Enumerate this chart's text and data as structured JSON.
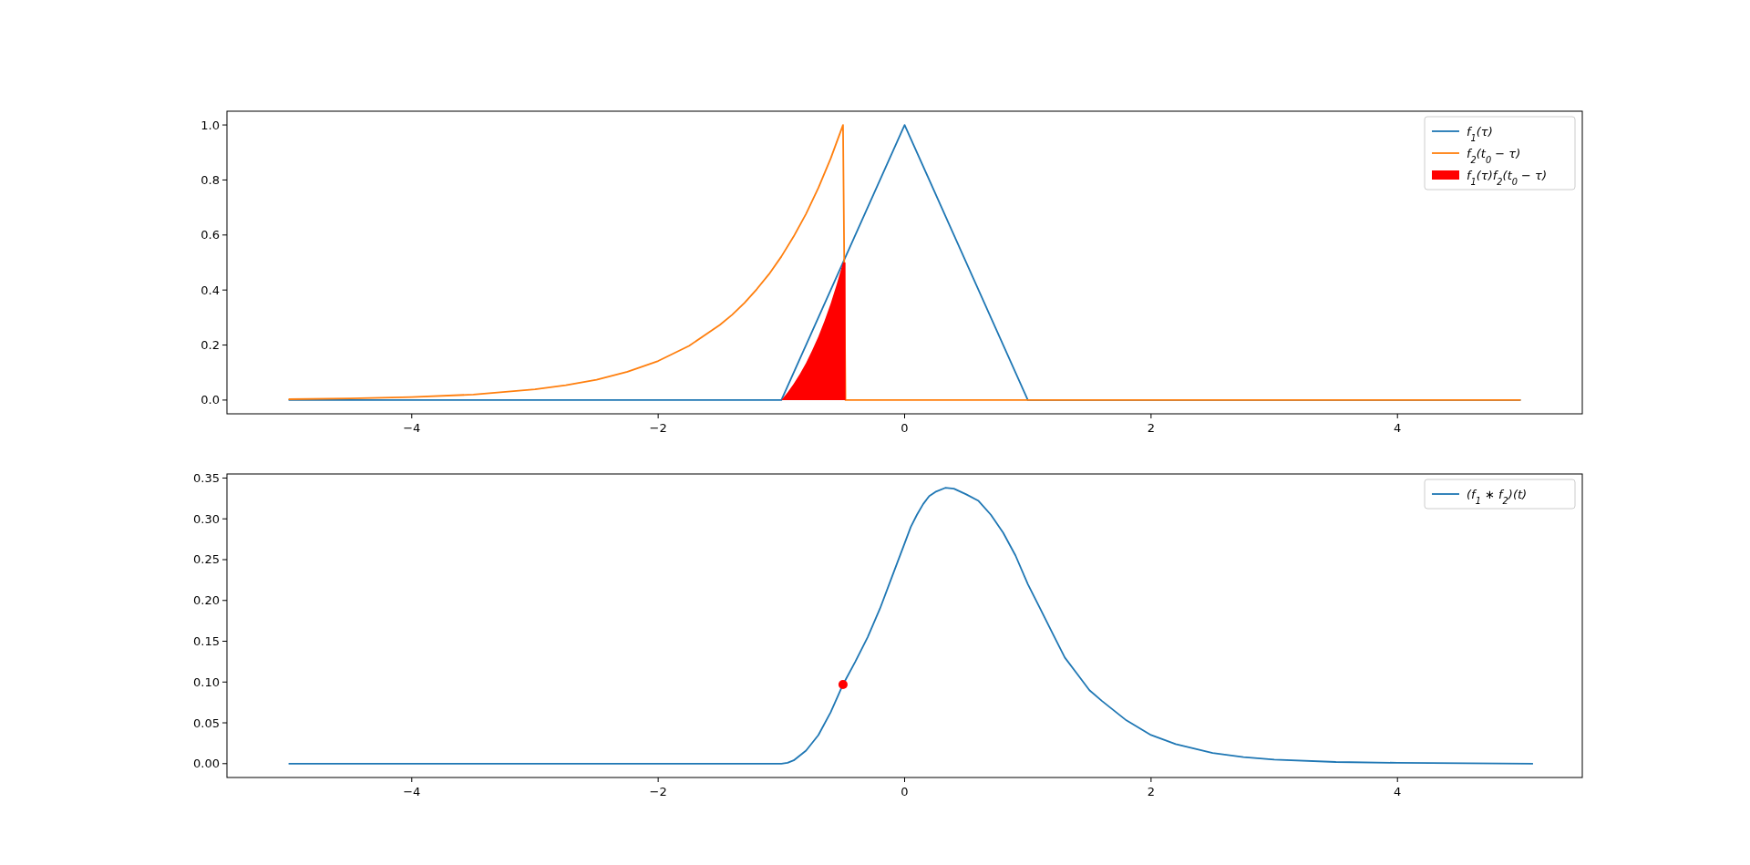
{
  "chart_data": [
    {
      "type": "line",
      "xlim": [
        -5.5,
        5.5
      ],
      "ylim": [
        -0.05,
        1.05
      ],
      "xticks": [
        -4,
        -2,
        0,
        2,
        4
      ],
      "yticks": [
        {
          "value": 0,
          "label": "0.0"
        },
        0.2,
        0.4,
        0.6,
        0.8,
        {
          "value": 1,
          "label": "1.0"
        }
      ],
      "legend": "top right",
      "grid": false,
      "series": [
        {
          "name": "f$_{1}$(τ)",
          "color": "#1f77b4",
          "x": [
            -5,
            -1,
            0,
            1,
            5
          ],
          "values": [
            0,
            0,
            1,
            0,
            0
          ]
        },
        {
          "name": "f$_{2}$(t$_{0}$ − τ)",
          "color": "#ff7f0e",
          "x": [
            -5,
            -4.5,
            -4,
            -3.5,
            -3,
            -2.75,
            -2.5,
            -2.25,
            -2,
            -1.75,
            -1.5,
            -1.4,
            -1.3,
            -1.2,
            -1.1,
            -1,
            -0.9,
            -0.8,
            -0.7,
            -0.6,
            -0.5,
            -0.48,
            5
          ],
          "values": [
            0.003,
            0.006,
            0.011,
            0.02,
            0.039,
            0.054,
            0.074,
            0.103,
            0.142,
            0.197,
            0.273,
            0.31,
            0.353,
            0.403,
            0.458,
            0.522,
            0.595,
            0.677,
            0.771,
            0.878,
            1,
            0,
            0
          ]
        },
        {
          "name": "f$_{1}$(τ)f$_{2}$(t$_{0}$ − τ)",
          "type": "area",
          "color": "#ff0000",
          "x": [
            -1,
            -0.95,
            -0.9,
            -0.85,
            -0.8,
            -0.75,
            -0.7,
            -0.65,
            -0.6,
            -0.55,
            -0.5,
            -0.48
          ],
          "values": [
            0,
            0.028,
            0.059,
            0.095,
            0.135,
            0.181,
            0.231,
            0.288,
            0.351,
            0.422,
            0.5,
            0.5
          ]
        }
      ]
    },
    {
      "type": "line",
      "xlim": [
        -5.5,
        5.5
      ],
      "ylim": [
        -0.017,
        0.355
      ],
      "xticks": [
        -4,
        -2,
        0,
        2,
        4
      ],
      "yticks": [
        {
          "value": 0,
          "label": "0.00"
        },
        0.05,
        {
          "value": 0.1,
          "label": "0.10"
        },
        0.15,
        {
          "value": 0.2,
          "label": "0.20"
        },
        0.25,
        {
          "value": 0.3,
          "label": "0.30"
        },
        0.35
      ],
      "legend": "top right",
      "grid": false,
      "series": [
        {
          "name": "(f$_{1}$ ∗ f$_{2}$)(t)",
          "color": "#1f77b4",
          "x": [
            -5,
            -1,
            -0.95,
            -0.9,
            -0.8,
            -0.7,
            -0.6,
            -0.5,
            -0.4,
            -0.3,
            -0.2,
            -0.1,
            0,
            0.05,
            0.1,
            0.15,
            0.2,
            0.25,
            0.33,
            0.4,
            0.5,
            0.6,
            0.7,
            0.8,
            0.9,
            1,
            1.1,
            1.2,
            1.3,
            1.4,
            1.5,
            1.6,
            1.8,
            2,
            2.2,
            2.5,
            2.75,
            3,
            3.5,
            4,
            5.1
          ],
          "values": [
            0,
            0,
            0.001,
            0.004,
            0.016,
            0.035,
            0.063,
            0.097,
            0.125,
            0.155,
            0.19,
            0.23,
            0.27,
            0.29,
            0.305,
            0.318,
            0.328,
            0.333,
            0.338,
            0.337,
            0.33,
            0.322,
            0.305,
            0.283,
            0.255,
            0.22,
            0.19,
            0.16,
            0.13,
            0.11,
            0.09,
            0.077,
            0.053,
            0.035,
            0.024,
            0.013,
            0.008,
            0.005,
            0.002,
            0.001,
            0
          ]
        },
        {
          "type": "scatter",
          "marker": "circle",
          "color": "#ff0000",
          "x": [
            -0.5
          ],
          "values": [
            0.097
          ]
        }
      ]
    }
  ]
}
